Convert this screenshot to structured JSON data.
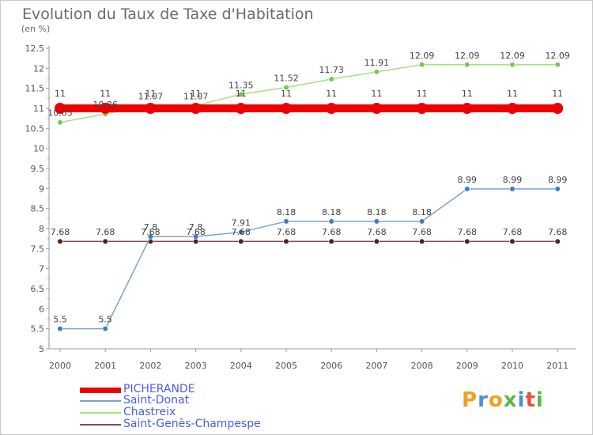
{
  "header": {
    "title": "Evolution du Taux de Taxe d'Habitation",
    "unit": "(en %)"
  },
  "logo": {
    "text": "Proxiti",
    "letters": [
      {
        "ch": "P",
        "color": "#f0a020"
      },
      {
        "ch": "r",
        "color": "#4a8fd8"
      },
      {
        "ch": "o",
        "color": "#f0a020"
      },
      {
        "ch": "x",
        "color": "#58b846"
      },
      {
        "ch": "i",
        "color": "#4a8fd8"
      },
      {
        "ch": "t",
        "color": "#e8503a"
      },
      {
        "ch": "i",
        "color": "#58b846"
      }
    ]
  },
  "chart_data": {
    "type": "line",
    "x": [
      "2000",
      "2001",
      "2002",
      "2003",
      "2004",
      "2005",
      "2006",
      "2007",
      "2008",
      "2009",
      "2010",
      "2011"
    ],
    "ylim": [
      5,
      12.5
    ],
    "yticks": [
      "5",
      "5.5",
      "6",
      "6.5",
      "7",
      "7.5",
      "8",
      "8.5",
      "9",
      "9.5",
      "10",
      "10.5",
      "11",
      "11.5",
      "12",
      "12.5"
    ],
    "grid": false,
    "legend_position": "bottom-left",
    "series": [
      {
        "name": "PICHERANDE",
        "color": "#ee0000",
        "thick": true,
        "values": [
          11,
          11,
          11,
          11,
          11,
          11,
          11,
          11,
          11,
          11,
          11,
          11
        ],
        "labels": [
          "11",
          "11",
          "11",
          "11",
          "11",
          "11",
          "11",
          "11",
          "11",
          "11",
          "11",
          "11"
        ]
      },
      {
        "name": "Saint-Donat",
        "color": "#7ba3cc",
        "marker": "#3a7fc0",
        "values": [
          5.5,
          5.5,
          7.8,
          7.8,
          7.91,
          8.18,
          8.18,
          8.18,
          8.18,
          8.99,
          8.99,
          8.99
        ],
        "labels": [
          "5.5",
          "5.5",
          "7.8",
          "7.8",
          "7.91",
          "8.18",
          "8.18",
          "8.18",
          "8.18",
          "8.99",
          "8.99",
          "8.99"
        ]
      },
      {
        "name": "Chastreix",
        "color": "#a8e080",
        "marker": "#78c850",
        "values": [
          10.65,
          10.86,
          11.07,
          11.07,
          11.35,
          11.52,
          11.73,
          11.91,
          12.09,
          12.09,
          12.09,
          12.09
        ],
        "labels": [
          "10.65",
          "10.86",
          "11.07",
          "11.07",
          "11.35",
          "11.52",
          "11.73",
          "11.91",
          "12.09",
          "12.09",
          "12.09",
          "12.09"
        ]
      },
      {
        "name": "Saint-Genès-Champespe",
        "color": "#8a4a4a",
        "marker": "#5a1e1e",
        "values": [
          7.68,
          7.68,
          7.68,
          7.68,
          7.68,
          7.68,
          7.68,
          7.68,
          7.68,
          7.68,
          7.68,
          7.68
        ],
        "labels": [
          "7.68",
          "7.68",
          "7.68",
          "7.68",
          "7.68",
          "7.68",
          "7.68",
          "7.68",
          "7.68",
          "7.68",
          "7.68",
          "7.68"
        ]
      }
    ]
  }
}
